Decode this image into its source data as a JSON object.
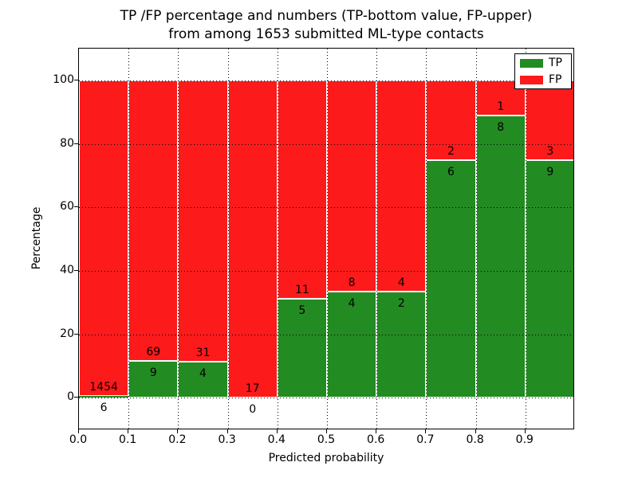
{
  "title": {
    "line1": "TP /FP percentage and numbers (TP-bottom value, FP-upper)",
    "line2": "from among 1653 submitted ML-type contacts"
  },
  "axes": {
    "xlabel": "Predicted probability",
    "ylabel": "Percentage",
    "x_tick_labels": [
      "0.0",
      "0.1",
      "0.2",
      "0.3",
      "0.4",
      "0.5",
      "0.6",
      "0.7",
      "0.8",
      "0.9"
    ],
    "y_tick_labels": [
      "0",
      "20",
      "40",
      "60",
      "80",
      "100"
    ]
  },
  "legend": {
    "position": "upper right",
    "entries": [
      {
        "label": "TP",
        "color": "#228b22"
      },
      {
        "label": "FP",
        "color": "#fc1a1a"
      }
    ]
  },
  "chart_data": {
    "type": "bar",
    "variant": "stacked-percentage-histogram",
    "title": "TP /FP percentage and numbers (TP-bottom value, FP-upper) from among 1653 submitted ML-type contacts",
    "xlabel": "Predicted probability",
    "ylabel": "Percentage",
    "xlim": [
      0.0,
      1.0
    ],
    "ylim": [
      -10.3,
      110.1
    ],
    "x_ticks": [
      0.0,
      0.1,
      0.2,
      0.3,
      0.4,
      0.5,
      0.6,
      0.7,
      0.8,
      0.9
    ],
    "y_ticks": [
      0,
      20,
      40,
      60,
      80,
      100
    ],
    "grid": "dotted black, both axes, drawn above bars",
    "legend_position": "upper right",
    "bin_edges": [
      0.0,
      0.1,
      0.2,
      0.3,
      0.4,
      0.5,
      0.6,
      0.7,
      0.8,
      0.9,
      1.0
    ],
    "categories": [
      "0.0-0.1",
      "0.1-0.2",
      "0.2-0.3",
      "0.3-0.4",
      "0.4-0.5",
      "0.5-0.6",
      "0.6-0.7",
      "0.7-0.8",
      "0.8-0.9",
      "0.9-1.0"
    ],
    "series": [
      {
        "name": "TP",
        "color": "#228b22",
        "counts": [
          6,
          9,
          4,
          0,
          5,
          4,
          2,
          6,
          8,
          9
        ],
        "percent": [
          0.41,
          11.54,
          11.43,
          0.0,
          31.25,
          33.33,
          33.33,
          75.0,
          88.89,
          75.0
        ]
      },
      {
        "name": "FP",
        "color": "#fc1a1a",
        "counts": [
          1454,
          69,
          31,
          17,
          11,
          8,
          4,
          2,
          1,
          3
        ],
        "percent": [
          99.59,
          88.46,
          88.57,
          100.0,
          68.75,
          66.67,
          66.67,
          25.0,
          11.11,
          25.0
        ]
      }
    ]
  }
}
